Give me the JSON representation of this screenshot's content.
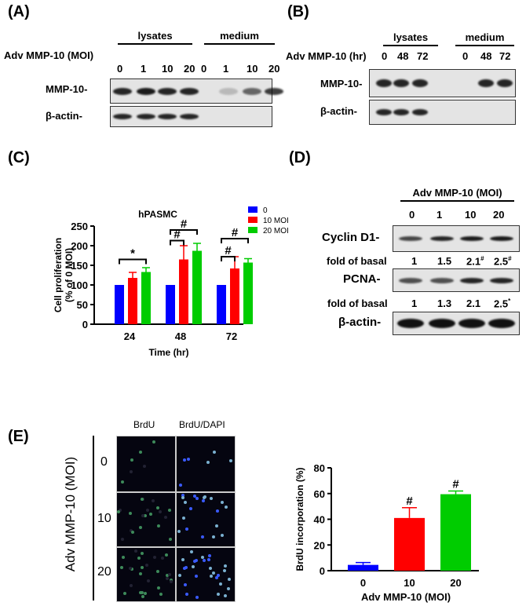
{
  "panelA": {
    "label": "(A)",
    "group1": "lysates",
    "group2": "medium",
    "row_label": "Adv MMP-10 (MOI)",
    "lanes": [
      "0",
      "1",
      "10",
      "20",
      "0",
      "1",
      "10",
      "20"
    ],
    "blots": [
      "MMP-10-",
      "β-actin-"
    ]
  },
  "panelB": {
    "label": "(B)",
    "group1": "lysates",
    "group2": "medium",
    "row_label": "Adv MMP-10 (hr)",
    "lanes": [
      "0",
      "48",
      "72",
      "0",
      "48",
      "72"
    ],
    "blots": [
      "MMP-10-",
      "β-actin-"
    ]
  },
  "panelD": {
    "label": "(D)",
    "header": "Adv MMP-10 (MOI)",
    "lanes": [
      "0",
      "1",
      "10",
      "20"
    ],
    "blots": [
      "Cyclin D1-",
      "PCNA-",
      "β-actin-"
    ],
    "fold_label": "fold of basal",
    "cyclin_fold": [
      "1",
      "1.5",
      "2.1",
      "2.5"
    ],
    "cyclin_sup": [
      "",
      "",
      "#",
      "#"
    ],
    "pcna_fold": [
      "1",
      "1.3",
      "2.1",
      "2.5"
    ],
    "pcna_sup": [
      "",
      "",
      "",
      "*"
    ]
  },
  "panelE": {
    "label": "(E)",
    "columns": [
      "BrdU",
      "BrdU/DAPI"
    ],
    "row_axis_label": "Adv MMP-10 (MOI)",
    "rows": [
      "0",
      "10",
      "20"
    ]
  },
  "panelC": {
    "label": "(C)"
  },
  "chart_data": [
    {
      "type": "bar",
      "title": "hPASMC",
      "xlabel": "Time (hr)",
      "ylabel": "Cell proliferation (% of 0 MOI)",
      "categories": [
        "24",
        "48",
        "72"
      ],
      "ylim": [
        0,
        250
      ],
      "yticks": [
        "0",
        "50",
        "100",
        "150",
        "200",
        "250"
      ],
      "legend_position": "top-right",
      "series": [
        {
          "name": "0",
          "color": "#0000ff",
          "values": [
            100,
            100,
            100
          ],
          "errors": [
            0,
            0,
            0
          ]
        },
        {
          "name": "10 MOI",
          "color": "#ff0000",
          "values": [
            118,
            165,
            142
          ],
          "errors": [
            14,
            35,
            30
          ]
        },
        {
          "name": "20 MOI",
          "color": "#00cc00",
          "values": [
            133,
            187,
            157
          ],
          "errors": [
            11,
            19,
            10
          ]
        }
      ],
      "annotations": [
        {
          "text": "*",
          "category": "24",
          "compare": [
            "0",
            "20 MOI"
          ]
        },
        {
          "text": "#",
          "category": "48",
          "compare": [
            "0",
            "10 MOI"
          ]
        },
        {
          "text": "#",
          "category": "48",
          "compare": [
            "0",
            "20 MOI"
          ]
        },
        {
          "text": "#",
          "category": "72",
          "compare": [
            "0",
            "10 MOI"
          ]
        },
        {
          "text": "#",
          "category": "72",
          "compare": [
            "0",
            "20 MOI"
          ]
        }
      ]
    },
    {
      "type": "bar",
      "xlabel": "Adv MMP-10 (MOI)",
      "ylabel": "BrdU incorporation (%)",
      "categories": [
        "0",
        "10",
        "20"
      ],
      "ylim": [
        0,
        80
      ],
      "yticks": [
        "0",
        "20",
        "40",
        "60",
        "80"
      ],
      "values": [
        4.5,
        41,
        59.5
      ],
      "errors": [
        1.8,
        8,
        2.5
      ],
      "colors": [
        "#0000ff",
        "#ff0000",
        "#00cc00"
      ],
      "annotations": [
        "",
        "#",
        "#"
      ]
    }
  ]
}
